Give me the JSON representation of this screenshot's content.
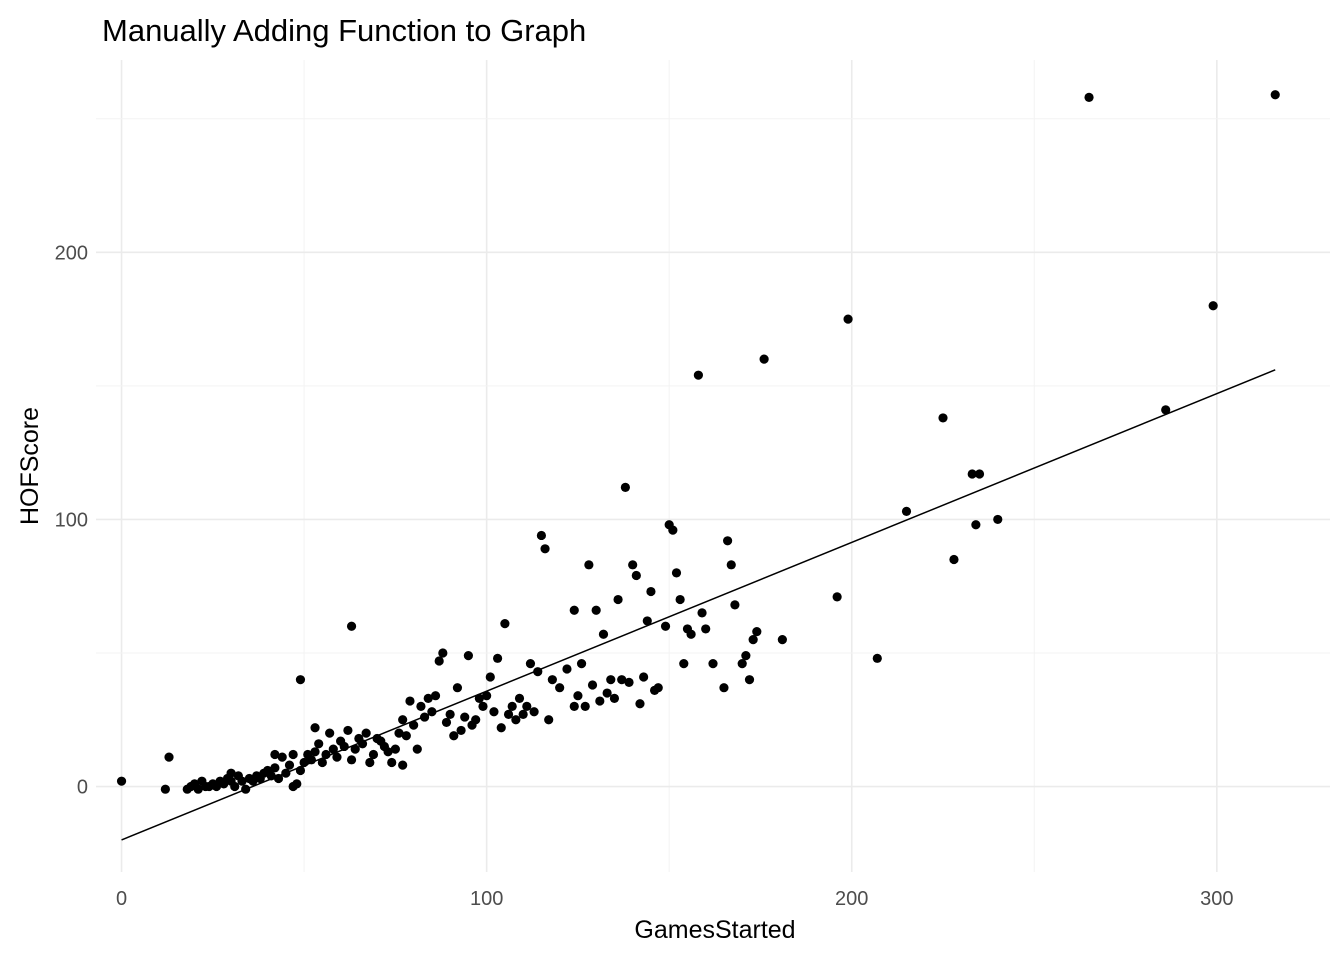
{
  "chart_data": {
    "type": "scatter",
    "title": "Manually Adding Function to Graph",
    "xlabel": "GamesStarted",
    "ylabel": "HOFScore",
    "xlim": [
      -7,
      331
    ],
    "ylim": [
      -32,
      272
    ],
    "x_ticks": [
      0,
      100,
      200,
      300
    ],
    "x_tick_labels": [
      "0",
      "100",
      "200",
      "300"
    ],
    "y_ticks": [
      0,
      100,
      200
    ],
    "y_tick_labels": [
      "0",
      "100",
      "200"
    ],
    "grid": true,
    "legend": "none",
    "colors": {
      "points": "#000000",
      "line": "#000000",
      "grid": "#ebebeb"
    },
    "line": {
      "type": "linear",
      "x": [
        0,
        316
      ],
      "y": [
        -20,
        156
      ]
    },
    "points": [
      [
        0,
        2
      ],
      [
        12,
        -1
      ],
      [
        13,
        11
      ],
      [
        18,
        -1
      ],
      [
        19,
        0
      ],
      [
        20,
        1
      ],
      [
        21,
        -1
      ],
      [
        22,
        2
      ],
      [
        23,
        0
      ],
      [
        24,
        0
      ],
      [
        25,
        1
      ],
      [
        26,
        0
      ],
      [
        27,
        2
      ],
      [
        28,
        1
      ],
      [
        29,
        3
      ],
      [
        30,
        5
      ],
      [
        30,
        2
      ],
      [
        31,
        0
      ],
      [
        32,
        4
      ],
      [
        33,
        2
      ],
      [
        34,
        -1
      ],
      [
        35,
        3
      ],
      [
        36,
        2
      ],
      [
        37,
        4
      ],
      [
        38,
        3
      ],
      [
        39,
        5
      ],
      [
        40,
        6
      ],
      [
        41,
        4
      ],
      [
        42,
        7
      ],
      [
        42,
        12
      ],
      [
        43,
        3
      ],
      [
        44,
        11
      ],
      [
        45,
        5
      ],
      [
        46,
        8
      ],
      [
        47,
        12
      ],
      [
        47,
        0
      ],
      [
        48,
        1
      ],
      [
        49,
        6
      ],
      [
        49,
        40
      ],
      [
        50,
        9
      ],
      [
        51,
        12
      ],
      [
        52,
        10
      ],
      [
        53,
        13
      ],
      [
        53,
        22
      ],
      [
        54,
        16
      ],
      [
        55,
        9
      ],
      [
        56,
        12
      ],
      [
        57,
        20
      ],
      [
        58,
        14
      ],
      [
        59,
        11
      ],
      [
        60,
        17
      ],
      [
        61,
        15
      ],
      [
        62,
        21
      ],
      [
        63,
        10
      ],
      [
        63,
        60
      ],
      [
        64,
        14
      ],
      [
        65,
        18
      ],
      [
        66,
        16
      ],
      [
        67,
        20
      ],
      [
        68,
        9
      ],
      [
        69,
        12
      ],
      [
        70,
        18
      ],
      [
        71,
        17
      ],
      [
        72,
        15
      ],
      [
        73,
        13
      ],
      [
        74,
        9
      ],
      [
        75,
        14
      ],
      [
        76,
        20
      ],
      [
        77,
        8
      ],
      [
        77,
        25
      ],
      [
        78,
        19
      ],
      [
        79,
        32
      ],
      [
        80,
        23
      ],
      [
        81,
        14
      ],
      [
        82,
        30
      ],
      [
        83,
        26
      ],
      [
        84,
        33
      ],
      [
        85,
        28
      ],
      [
        86,
        34
      ],
      [
        87,
        47
      ],
      [
        88,
        50
      ],
      [
        89,
        24
      ],
      [
        90,
        27
      ],
      [
        91,
        19
      ],
      [
        92,
        37
      ],
      [
        93,
        21
      ],
      [
        94,
        26
      ],
      [
        95,
        49
      ],
      [
        96,
        23
      ],
      [
        97,
        25
      ],
      [
        98,
        33
      ],
      [
        99,
        30
      ],
      [
        100,
        34
      ],
      [
        101,
        41
      ],
      [
        102,
        28
      ],
      [
        103,
        48
      ],
      [
        104,
        22
      ],
      [
        105,
        61
      ],
      [
        106,
        27
      ],
      [
        107,
        30
      ],
      [
        108,
        25
      ],
      [
        109,
        33
      ],
      [
        110,
        27
      ],
      [
        111,
        30
      ],
      [
        112,
        46
      ],
      [
        113,
        28
      ],
      [
        114,
        43
      ],
      [
        115,
        94
      ],
      [
        116,
        89
      ],
      [
        117,
        25
      ],
      [
        118,
        40
      ],
      [
        120,
        37
      ],
      [
        122,
        44
      ],
      [
        124,
        66
      ],
      [
        124,
        30
      ],
      [
        125,
        34
      ],
      [
        126,
        46
      ],
      [
        127,
        30
      ],
      [
        128,
        83
      ],
      [
        129,
        38
      ],
      [
        130,
        66
      ],
      [
        131,
        32
      ],
      [
        132,
        57
      ],
      [
        133,
        35
      ],
      [
        134,
        40
      ],
      [
        135,
        33
      ],
      [
        136,
        70
      ],
      [
        137,
        40
      ],
      [
        138,
        112
      ],
      [
        139,
        39
      ],
      [
        140,
        83
      ],
      [
        141,
        79
      ],
      [
        142,
        31
      ],
      [
        143,
        41
      ],
      [
        144,
        62
      ],
      [
        145,
        73
      ],
      [
        146,
        36
      ],
      [
        147,
        37
      ],
      [
        149,
        60
      ],
      [
        150,
        98
      ],
      [
        151,
        96
      ],
      [
        152,
        80
      ],
      [
        153,
        70
      ],
      [
        154,
        46
      ],
      [
        155,
        59
      ],
      [
        156,
        57
      ],
      [
        158,
        154
      ],
      [
        159,
        65
      ],
      [
        160,
        59
      ],
      [
        162,
        46
      ],
      [
        165,
        37
      ],
      [
        166,
        92
      ],
      [
        167,
        83
      ],
      [
        168,
        68
      ],
      [
        170,
        46
      ],
      [
        171,
        49
      ],
      [
        172,
        40
      ],
      [
        173,
        55
      ],
      [
        174,
        58
      ],
      [
        176,
        160
      ],
      [
        181,
        55
      ],
      [
        196,
        71
      ],
      [
        199,
        175
      ],
      [
        207,
        48
      ],
      [
        215,
        103
      ],
      [
        225,
        138
      ],
      [
        228,
        85
      ],
      [
        233,
        117
      ],
      [
        234,
        98
      ],
      [
        235,
        117
      ],
      [
        240,
        100
      ],
      [
        265,
        258
      ],
      [
        286,
        141
      ],
      [
        299,
        180
      ],
      [
        316,
        259
      ]
    ]
  }
}
